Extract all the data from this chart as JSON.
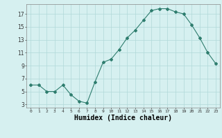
{
  "x": [
    0,
    1,
    2,
    3,
    4,
    5,
    6,
    7,
    8,
    9,
    10,
    11,
    12,
    13,
    14,
    15,
    16,
    17,
    18,
    19,
    20,
    21,
    22,
    23
  ],
  "y": [
    6,
    6,
    5,
    5,
    6,
    4.5,
    3.5,
    3.2,
    6.5,
    9.5,
    10,
    11.5,
    13.3,
    14.5,
    16,
    17.5,
    17.8,
    17.8,
    17.3,
    17,
    15.3,
    13.3,
    11,
    9.3
  ],
  "line_color": "#2e7d6e",
  "marker": "D",
  "marker_size": 2,
  "bg_color": "#d6f0f0",
  "grid_color": "#b0d8d8",
  "xlabel": "Humidex (Indice chaleur)",
  "xlabel_fontsize": 7,
  "xlim": [
    -0.5,
    23.5
  ],
  "ylim": [
    2.5,
    18.5
  ],
  "yticks": [
    3,
    5,
    7,
    9,
    11,
    13,
    15,
    17
  ],
  "xticks": [
    0,
    1,
    2,
    3,
    4,
    5,
    6,
    7,
    8,
    9,
    10,
    11,
    12,
    13,
    14,
    15,
    16,
    17,
    18,
    19,
    20,
    21,
    22,
    23
  ]
}
